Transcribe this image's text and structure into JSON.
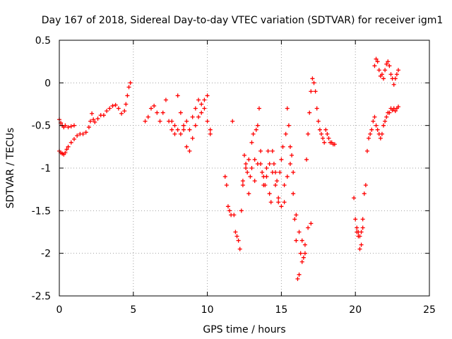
{
  "chart_data": {
    "type": "scatter",
    "title": "Day 167 of 2018, Sidereal Day-to-day VTEC variation (SDTVAR) for receiver igm1",
    "xlabel": "GPS time / hours",
    "ylabel": "SDTVAR / TECUs",
    "xlim": [
      0,
      25
    ],
    "ylim": [
      -2.5,
      0.5
    ],
    "xticks": [
      0,
      5,
      10,
      15,
      20,
      25
    ],
    "yticks": [
      -2.5,
      -2,
      -1.5,
      -1,
      -0.5,
      0,
      0.5
    ],
    "xtick_labels": [
      "0",
      "5",
      "10",
      "15",
      "20",
      "25"
    ],
    "ytick_labels": [
      "-2.5",
      "-2",
      "-1.5",
      "-1",
      "-0.5",
      "0",
      "0.5"
    ],
    "grid": true,
    "marker": "+",
    "color": "#ff0000",
    "series": [
      {
        "name": "seg1-upper",
        "x": [
          0.0,
          0.1,
          0.2,
          0.3,
          0.4,
          0.6,
          0.8,
          1.0
        ],
        "y": [
          -0.43,
          -0.47,
          -0.5,
          -0.52,
          -0.5,
          -0.52,
          -0.51,
          -0.5
        ]
      },
      {
        "name": "seg1-lower",
        "x": [
          0.0,
          0.1,
          0.2,
          0.3,
          0.4,
          0.5,
          0.6,
          0.8,
          1.0,
          1.2,
          1.4,
          1.6,
          1.8,
          2.0,
          2.1,
          2.2,
          2.3,
          2.4,
          2.6,
          2.8,
          3.0,
          3.2,
          3.4,
          3.6,
          3.8,
          4.0,
          4.2,
          4.4,
          4.5,
          4.6,
          4.7,
          4.8
        ],
        "y": [
          -0.8,
          -0.82,
          -0.83,
          -0.84,
          -0.82,
          -0.78,
          -0.75,
          -0.7,
          -0.66,
          -0.62,
          -0.6,
          -0.6,
          -0.58,
          -0.52,
          -0.45,
          -0.36,
          -0.43,
          -0.46,
          -0.42,
          -0.38,
          -0.38,
          -0.33,
          -0.3,
          -0.27,
          -0.26,
          -0.3,
          -0.36,
          -0.33,
          -0.25,
          -0.15,
          -0.05,
          0.0
        ]
      },
      {
        "name": "seg2",
        "x": [
          5.8,
          6.0,
          6.2,
          6.4,
          6.6,
          6.8,
          7.0,
          7.2,
          7.4,
          7.6,
          7.8,
          8.0,
          8.2,
          8.4,
          8.6,
          8.8,
          9.0,
          9.2,
          9.4,
          9.6,
          9.8,
          10.0,
          10.2
        ],
        "y": [
          -0.45,
          -0.4,
          -0.3,
          -0.27,
          -0.35,
          -0.45,
          -0.35,
          -0.2,
          -0.45,
          -0.55,
          -0.6,
          -0.15,
          -0.35,
          -0.55,
          -0.75,
          -0.8,
          -0.65,
          -0.3,
          -0.2,
          -0.25,
          -0.2,
          -0.15,
          -0.55
        ]
      },
      {
        "name": "seg2b",
        "x": [
          7.6,
          7.8,
          8.0,
          8.2,
          8.4,
          8.6,
          8.8,
          9.0,
          9.2,
          9.4,
          9.6,
          9.8,
          10.0,
          10.2
        ],
        "y": [
          -0.45,
          -0.5,
          -0.55,
          -0.6,
          -0.5,
          -0.45,
          -0.55,
          -0.4,
          -0.5,
          -0.4,
          -0.35,
          -0.3,
          -0.45,
          -0.6
        ]
      },
      {
        "name": "seg3",
        "x": [
          11.2,
          11.3,
          11.4,
          11.5,
          11.6,
          11.7,
          11.8,
          11.9,
          12.0,
          12.1,
          12.2,
          12.3,
          12.4,
          12.5,
          12.6,
          12.7,
          12.8,
          12.9,
          13.0,
          13.1,
          13.2,
          13.3,
          13.4,
          13.5,
          13.6,
          13.7,
          13.8,
          13.9,
          14.0,
          14.1,
          14.2,
          14.3,
          14.4,
          14.5,
          14.6,
          14.7,
          14.8,
          14.9,
          15.0,
          15.1,
          15.2,
          15.3,
          15.4,
          15.5,
          15.6,
          15.7,
          15.8,
          15.9,
          16.0,
          16.1,
          16.2,
          16.3,
          16.4,
          16.5,
          16.6,
          16.7,
          16.8,
          16.9,
          17.0,
          17.1,
          17.2,
          17.3,
          17.4,
          17.5,
          17.6,
          17.7,
          17.8,
          17.9,
          18.0,
          18.1,
          18.2,
          18.3,
          18.4,
          18.5,
          18.6
        ],
        "y": [
          -1.1,
          -1.2,
          -1.45,
          -1.5,
          -1.55,
          -0.45,
          -1.55,
          -1.75,
          -1.8,
          -1.85,
          -1.95,
          -1.5,
          -1.15,
          -0.85,
          -0.95,
          -1.05,
          -1.3,
          -1.1,
          -0.7,
          -0.6,
          -0.9,
          -0.55,
          -0.5,
          -0.3,
          -0.95,
          -1.05,
          -1.1,
          -1.2,
          -1.0,
          -0.8,
          -1.3,
          -1.4,
          -0.8,
          -0.95,
          -1.05,
          -1.15,
          -1.4,
          -1.05,
          -0.9,
          -0.75,
          -1.2,
          -0.6,
          -0.3,
          -0.5,
          -0.75,
          -0.85,
          -1.3,
          -1.6,
          -1.85,
          -2.3,
          -2.25,
          -2.0,
          -1.85,
          -2.05,
          -1.9,
          -0.9,
          -0.6,
          -0.35,
          -0.1,
          0.05,
          0.0,
          -0.1,
          -0.3,
          -0.45,
          -0.55,
          -0.6,
          -0.65,
          -0.7,
          -0.55,
          -0.6,
          -0.65,
          -0.7,
          -0.7,
          -0.72,
          -0.72
        ]
      },
      {
        "name": "seg3b",
        "x": [
          12.4,
          12.6,
          12.8,
          13.0,
          13.2,
          13.4,
          13.6,
          13.8,
          14.0,
          14.2,
          14.4,
          14.6,
          14.8,
          15.0,
          15.2,
          15.4,
          15.6,
          15.8,
          16.0,
          16.2,
          16.4,
          16.6,
          16.8,
          17.0
        ],
        "y": [
          -1.2,
          -1.0,
          -0.9,
          -1.0,
          -1.15,
          -0.95,
          -0.8,
          -1.2,
          -1.1,
          -0.95,
          -1.05,
          -1.2,
          -1.35,
          -1.45,
          -1.4,
          -1.1,
          -0.95,
          -1.05,
          -1.55,
          -1.75,
          -2.1,
          -2.0,
          -1.7,
          -1.65
        ]
      },
      {
        "name": "seg4",
        "x": [
          19.9,
          20.0,
          20.1,
          20.2,
          20.3,
          20.4,
          20.5,
          20.6,
          20.7,
          20.8,
          20.9,
          21.0,
          21.1,
          21.2,
          21.3,
          21.4,
          21.5,
          21.6,
          21.7,
          21.8,
          21.9,
          22.0,
          22.1,
          22.2,
          22.3,
          22.4,
          22.5,
          22.6,
          22.7,
          22.8,
          22.9
        ],
        "y": [
          -1.35,
          -1.6,
          -1.75,
          -1.8,
          -1.95,
          -1.9,
          -1.6,
          -1.3,
          -1.2,
          -0.8,
          -0.65,
          -0.6,
          -0.55,
          -0.45,
          -0.4,
          -0.5,
          -0.55,
          -0.6,
          -0.65,
          -0.6,
          -0.5,
          -0.45,
          -0.4,
          -0.35,
          -0.35,
          -0.3,
          -0.32,
          -0.3,
          -0.33,
          -0.3,
          -0.28
        ]
      },
      {
        "name": "seg4b",
        "x": [
          21.3,
          21.4,
          21.5,
          21.6,
          21.7,
          21.8,
          21.9,
          22.0,
          22.1,
          22.2,
          22.3,
          22.4,
          22.5,
          22.6,
          22.7,
          22.8,
          22.9
        ],
        "y": [
          0.2,
          0.28,
          0.25,
          0.15,
          0.08,
          0.1,
          0.05,
          0.15,
          0.22,
          0.25,
          0.2,
          0.1,
          0.05,
          -0.02,
          0.05,
          0.1,
          0.15
        ]
      },
      {
        "name": "seg4c",
        "x": [
          20.1,
          20.2,
          20.3,
          20.4,
          20.5
        ],
        "y": [
          -1.7,
          -1.75,
          -1.8,
          -1.75,
          -1.7
        ]
      }
    ]
  }
}
